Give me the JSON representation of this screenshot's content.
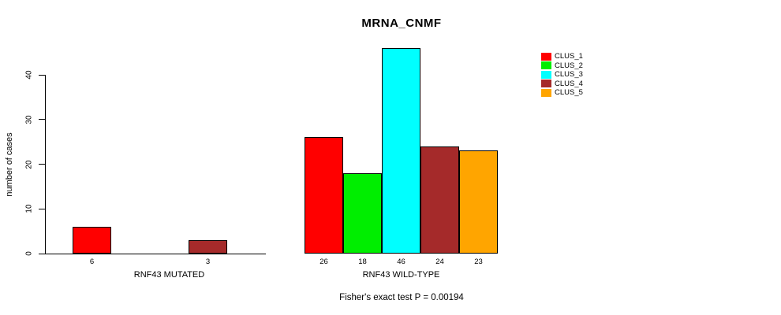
{
  "chart_data": {
    "type": "bar",
    "title": "MRNA_CNMF",
    "ylabel": "number of cases",
    "xlabel": "",
    "ylim": [
      0,
      47
    ],
    "yticks": [
      0,
      10,
      20,
      30,
      40
    ],
    "grid": false,
    "legend_position": "top-right",
    "categories": [
      "RNF43 MUTATED",
      "RNF43 WILD-TYPE"
    ],
    "series": [
      {
        "name": "CLUS_1",
        "color": "#ff0000",
        "values": [
          6,
          26
        ]
      },
      {
        "name": "CLUS_2",
        "color": "#00ee00",
        "values": [
          0,
          18
        ]
      },
      {
        "name": "CLUS_3",
        "color": "#00ffff",
        "values": [
          0,
          46
        ]
      },
      {
        "name": "CLUS_4",
        "color": "#a52a2a",
        "values": [
          3,
          24
        ]
      },
      {
        "name": "CLUS_5",
        "color": "#ffa500",
        "values": [
          0,
          23
        ]
      }
    ],
    "bar_value_labels": {
      "RNF43 MUTATED": [
        "6",
        "3"
      ],
      "RNF43 WILD-TYPE": [
        "26",
        "18",
        "46",
        "24",
        "23"
      ]
    },
    "annotation": "Fisher's exact test P = 0.00194",
    "axis_color": "#000000",
    "note": "zero-height bars are drawn as flat segments on the baseline"
  }
}
